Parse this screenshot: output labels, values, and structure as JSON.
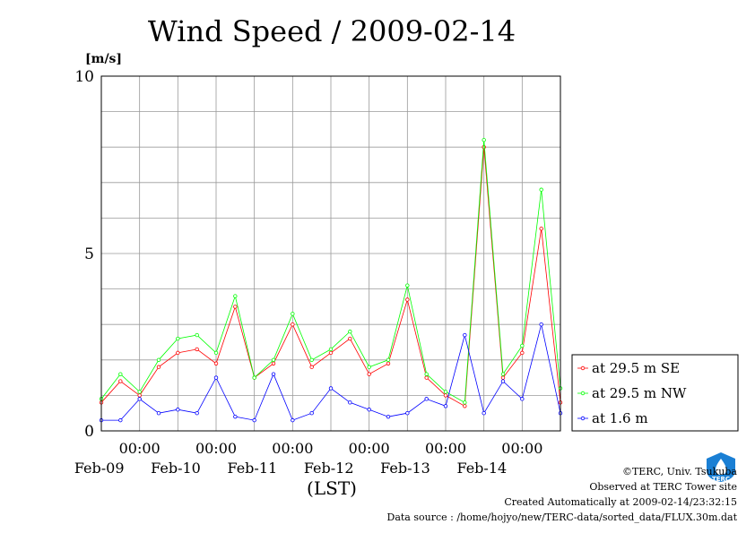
{
  "chart_data": {
    "type": "line",
    "title": "Wind Speed / 2009-02-14",
    "ylabel": "[m/s]",
    "xlabel": "(LST)",
    "ylim": [
      0,
      10
    ],
    "yticks": [
      "0",
      "5",
      "10"
    ],
    "xlim_days": [
      0,
      6
    ],
    "x_start": "2009-02-08 12:00",
    "xticks": [
      {
        "time": "00:00",
        "date": "Feb-09"
      },
      {
        "time": "00:00",
        "date": "Feb-10"
      },
      {
        "time": "00:00",
        "date": "Feb-11"
      },
      {
        "time": "00:00",
        "date": "Feb-12"
      },
      {
        "time": "00:00",
        "date": "Feb-13"
      },
      {
        "time": "00:00",
        "date": "Feb-14"
      }
    ],
    "grid": true,
    "legend_position": "right",
    "series": [
      {
        "name": "at 29.5 m SE",
        "color": "#ff0000",
        "x_days": [
          0.0,
          0.25,
          0.5,
          0.75,
          1.0,
          1.25,
          1.5,
          1.75,
          2.0,
          2.25,
          2.5,
          2.75,
          3.0,
          3.25,
          3.5,
          3.75,
          4.0,
          4.25,
          4.5,
          4.75,
          5.0,
          5.25,
          5.5,
          5.75,
          6.0
        ],
        "values": [
          0.8,
          1.4,
          1.0,
          1.8,
          2.2,
          2.3,
          1.9,
          3.5,
          1.5,
          1.9,
          3.0,
          1.8,
          2.2,
          2.6,
          1.6,
          1.9,
          3.7,
          1.5,
          1.0,
          0.7,
          8.0,
          1.5,
          2.2,
          5.7,
          0.8
        ]
      },
      {
        "name": "at 29.5 m NW",
        "color": "#00ff00",
        "x_days": [
          0.0,
          0.25,
          0.5,
          0.75,
          1.0,
          1.25,
          1.5,
          1.75,
          2.0,
          2.25,
          2.5,
          2.75,
          3.0,
          3.25,
          3.5,
          3.75,
          4.0,
          4.25,
          4.5,
          4.75,
          5.0,
          5.25,
          5.5,
          5.75,
          6.0
        ],
        "values": [
          0.9,
          1.6,
          1.1,
          2.0,
          2.6,
          2.7,
          2.2,
          3.8,
          1.5,
          2.0,
          3.3,
          2.0,
          2.3,
          2.8,
          1.8,
          2.0,
          4.1,
          1.6,
          1.1,
          0.8,
          8.2,
          1.6,
          2.4,
          6.8,
          1.2
        ]
      },
      {
        "name": "at 1.6 m",
        "color": "#0000ff",
        "x_days": [
          0.0,
          0.25,
          0.5,
          0.75,
          1.0,
          1.25,
          1.5,
          1.75,
          2.0,
          2.25,
          2.5,
          2.75,
          3.0,
          3.25,
          3.5,
          3.75,
          4.0,
          4.25,
          4.5,
          4.75,
          5.0,
          5.25,
          5.5,
          5.75,
          6.0
        ],
        "values": [
          0.3,
          0.3,
          0.9,
          0.5,
          0.6,
          0.5,
          1.5,
          0.4,
          0.3,
          1.6,
          0.3,
          0.5,
          1.2,
          0.8,
          0.6,
          0.4,
          0.5,
          0.9,
          0.7,
          2.7,
          0.5,
          1.4,
          0.9,
          3.0,
          0.5
        ]
      }
    ]
  },
  "footer": {
    "copyright": "©TERC, Univ. Tsukuba",
    "observed": "Observed at TERC Tower site",
    "created": "Created Automatically at 2009-02-14/23:32:15",
    "source": "Data source : /home/hojyo/new/TERC-data/sorted_data/FLUX.30m.dat"
  },
  "logo": {
    "text": "TERC",
    "color": "#1a7fd4",
    "icon": "terc-logo-icon"
  }
}
